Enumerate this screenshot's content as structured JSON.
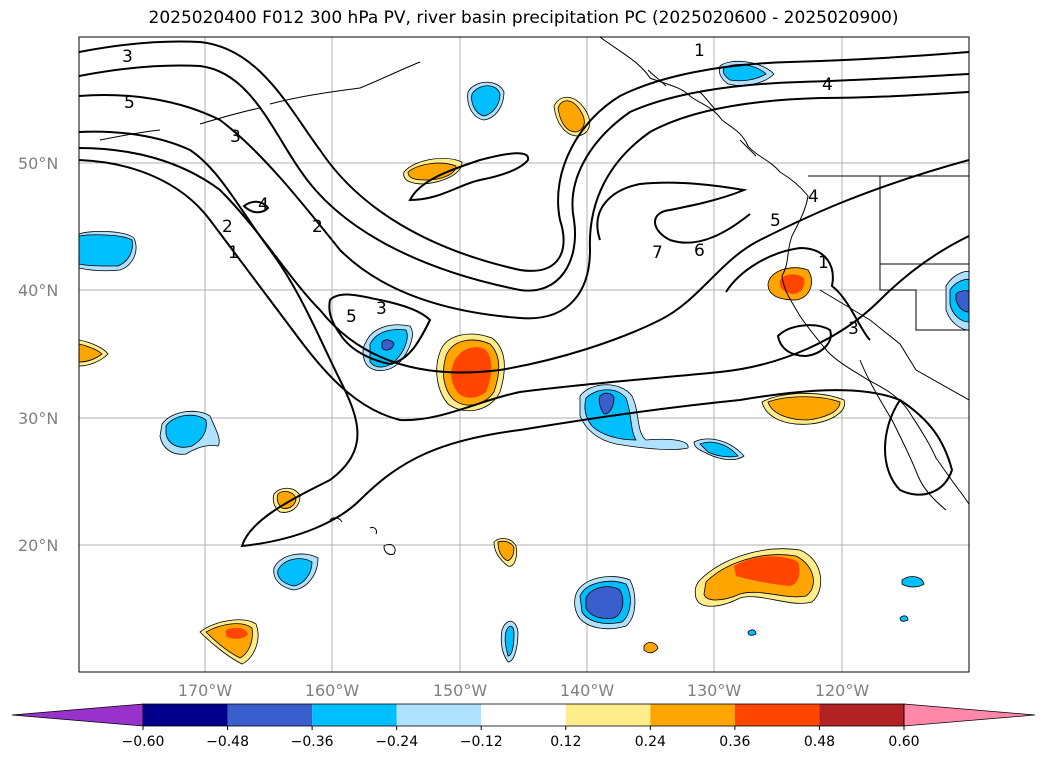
{
  "title": "2025020400 F012 300 hPa PV, river basin precipitation PC (2025020600 - 2025020900)",
  "lat_labels": [
    "50°N",
    "40°N",
    "30°N",
    "20°N"
  ],
  "lon_labels": [
    "170°W",
    "160°W",
    "150°W",
    "140°W",
    "130°W",
    "120°W"
  ],
  "contour_labels": [
    "3",
    "5",
    "3",
    "2",
    "4",
    "2",
    "1",
    "1",
    "4",
    "5",
    "3",
    "1",
    "7",
    "6",
    "5",
    "4",
    "3"
  ],
  "colorbar": {
    "ticks": [
      "−0.60",
      "−0.48",
      "−0.36",
      "−0.24",
      "−0.12",
      "0.12",
      "0.24",
      "0.36",
      "0.48",
      "0.60"
    ],
    "colors": [
      "#9932CC",
      "#00008B",
      "#3A5FCD",
      "#00BFFF",
      "#B0E2FF",
      "#FFFFFF",
      "#FFEC8B",
      "#FFA500",
      "#FF4500",
      "#B22222",
      "#FF88AA"
    ]
  }
}
